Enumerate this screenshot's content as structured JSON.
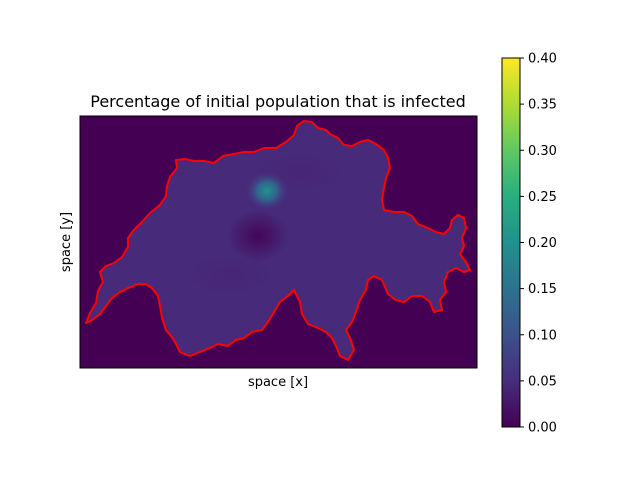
{
  "chart_data": {
    "type": "heatmap",
    "title": "Percentage of initial population that is infected",
    "xlabel": "space [x]",
    "ylabel": "space [y]",
    "colorbar": {
      "colormap": "viridis",
      "range": [
        0.0,
        0.4
      ],
      "ticks": [
        0.0,
        0.05,
        0.1,
        0.15,
        0.2,
        0.25,
        0.3,
        0.35,
        0.4
      ],
      "tick_labels": [
        "0.00",
        "0.05",
        "0.10",
        "0.15",
        "0.20",
        "0.25",
        "0.30",
        "0.35",
        "0.40"
      ]
    },
    "background_value": 0.0,
    "region_base_value": 0.025,
    "hotspot": {
      "peak_value": 0.24,
      "x": 0.47,
      "y": 0.7
    },
    "boundary_color": "#ff0000",
    "x_ticks": [],
    "y_ticks": []
  }
}
